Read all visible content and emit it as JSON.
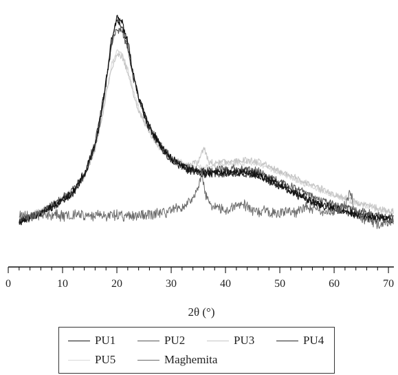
{
  "chart_data": {
    "type": "line",
    "title": "",
    "xlabel": "2θ (°)",
    "ylabel": "",
    "xlim": [
      0,
      71
    ],
    "x_ticks": [
      0,
      10,
      20,
      30,
      40,
      50,
      60,
      70
    ],
    "x_tick_labels": [
      "0",
      "10",
      "20",
      "30",
      "40",
      "50",
      "60",
      "70"
    ],
    "y_ticks_shown": false,
    "grid": false,
    "legend_position": "bottom",
    "series": [
      {
        "name": "PU1",
        "color": "#111111",
        "x": [
          2,
          6,
          9,
          12,
          14,
          16,
          17,
          18,
          19,
          20,
          21,
          22,
          23,
          24,
          25,
          26,
          28,
          30,
          33,
          36,
          40,
          43,
          46,
          50,
          55,
          60,
          65,
          68,
          71
        ],
        "y": [
          4,
          12,
          20,
          30,
          45,
          70,
          95,
          125,
          160,
          178,
          175,
          158,
          132,
          112,
          98,
          86,
          70,
          58,
          50,
          46,
          47,
          47,
          45,
          36,
          24,
          16,
          10,
          8,
          6
        ]
      },
      {
        "name": "PU2",
        "color": "#555555",
        "x": [
          2,
          6,
          9,
          12,
          14,
          16,
          17,
          18,
          19,
          20,
          21,
          22,
          23,
          24,
          25,
          26,
          28,
          30,
          33,
          36,
          40,
          43,
          46,
          50,
          55,
          60,
          65,
          68,
          71
        ],
        "y": [
          5,
          13,
          21,
          32,
          46,
          72,
          96,
          124,
          155,
          170,
          167,
          152,
          129,
          110,
          96,
          85,
          70,
          59,
          51,
          48,
          50,
          50,
          48,
          39,
          28,
          19,
          13,
          10,
          8
        ]
      },
      {
        "name": "PU3",
        "color": "#c4c4c4",
        "x": [
          2,
          6,
          9,
          12,
          14,
          16,
          17,
          18,
          19,
          20,
          21,
          22,
          23,
          24,
          25,
          26,
          28,
          30,
          33,
          35,
          36,
          37,
          40,
          43,
          46,
          50,
          55,
          60,
          65,
          68,
          71
        ],
        "y": [
          5,
          13,
          21,
          31,
          44,
          66,
          88,
          112,
          136,
          148,
          145,
          133,
          115,
          100,
          90,
          80,
          67,
          58,
          53,
          56,
          68,
          55,
          56,
          57,
          56,
          48,
          38,
          28,
          20,
          16,
          13
        ]
      },
      {
        "name": "PU4",
        "color": "#222222",
        "x": [
          2,
          6,
          9,
          12,
          14,
          16,
          17,
          18,
          19,
          20,
          21,
          22,
          23,
          24,
          25,
          26,
          28,
          30,
          33,
          36,
          40,
          43,
          46,
          50,
          55,
          60,
          65,
          68,
          71
        ],
        "y": [
          4,
          12,
          19,
          29,
          44,
          69,
          93,
          122,
          158,
          176,
          172,
          155,
          130,
          110,
          96,
          84,
          69,
          57,
          49,
          45,
          46,
          46,
          44,
          35,
          23,
          15,
          9,
          7,
          5
        ]
      },
      {
        "name": "PU5",
        "color": "#d8d8d8",
        "x": [
          2,
          6,
          9,
          12,
          14,
          16,
          17,
          18,
          19,
          20,
          21,
          22,
          23,
          24,
          25,
          26,
          28,
          30,
          33,
          36,
          40,
          43,
          46,
          50,
          55,
          60,
          65,
          68,
          71
        ],
        "y": [
          6,
          14,
          22,
          32,
          45,
          68,
          90,
          114,
          138,
          150,
          147,
          135,
          117,
          102,
          91,
          81,
          68,
          59,
          53,
          51,
          54,
          55,
          54,
          46,
          36,
          27,
          19,
          15,
          12
        ]
      },
      {
        "name": "Maghemita",
        "color": "#6a6a6a",
        "x": [
          2,
          5,
          10,
          15,
          20,
          25,
          28,
          30,
          32,
          34,
          35,
          35.6,
          36.2,
          37,
          38,
          40,
          43,
          45,
          48,
          50,
          53,
          55,
          57,
          60,
          62,
          63,
          64,
          65,
          68,
          71
        ],
        "y": [
          10,
          10,
          10,
          10,
          10,
          10,
          12,
          14,
          17,
          24,
          32,
          48,
          30,
          20,
          17,
          15,
          20,
          14,
          13,
          13,
          12,
          18,
          14,
          14,
          18,
          30,
          14,
          8,
          2,
          6
        ]
      }
    ]
  }
}
